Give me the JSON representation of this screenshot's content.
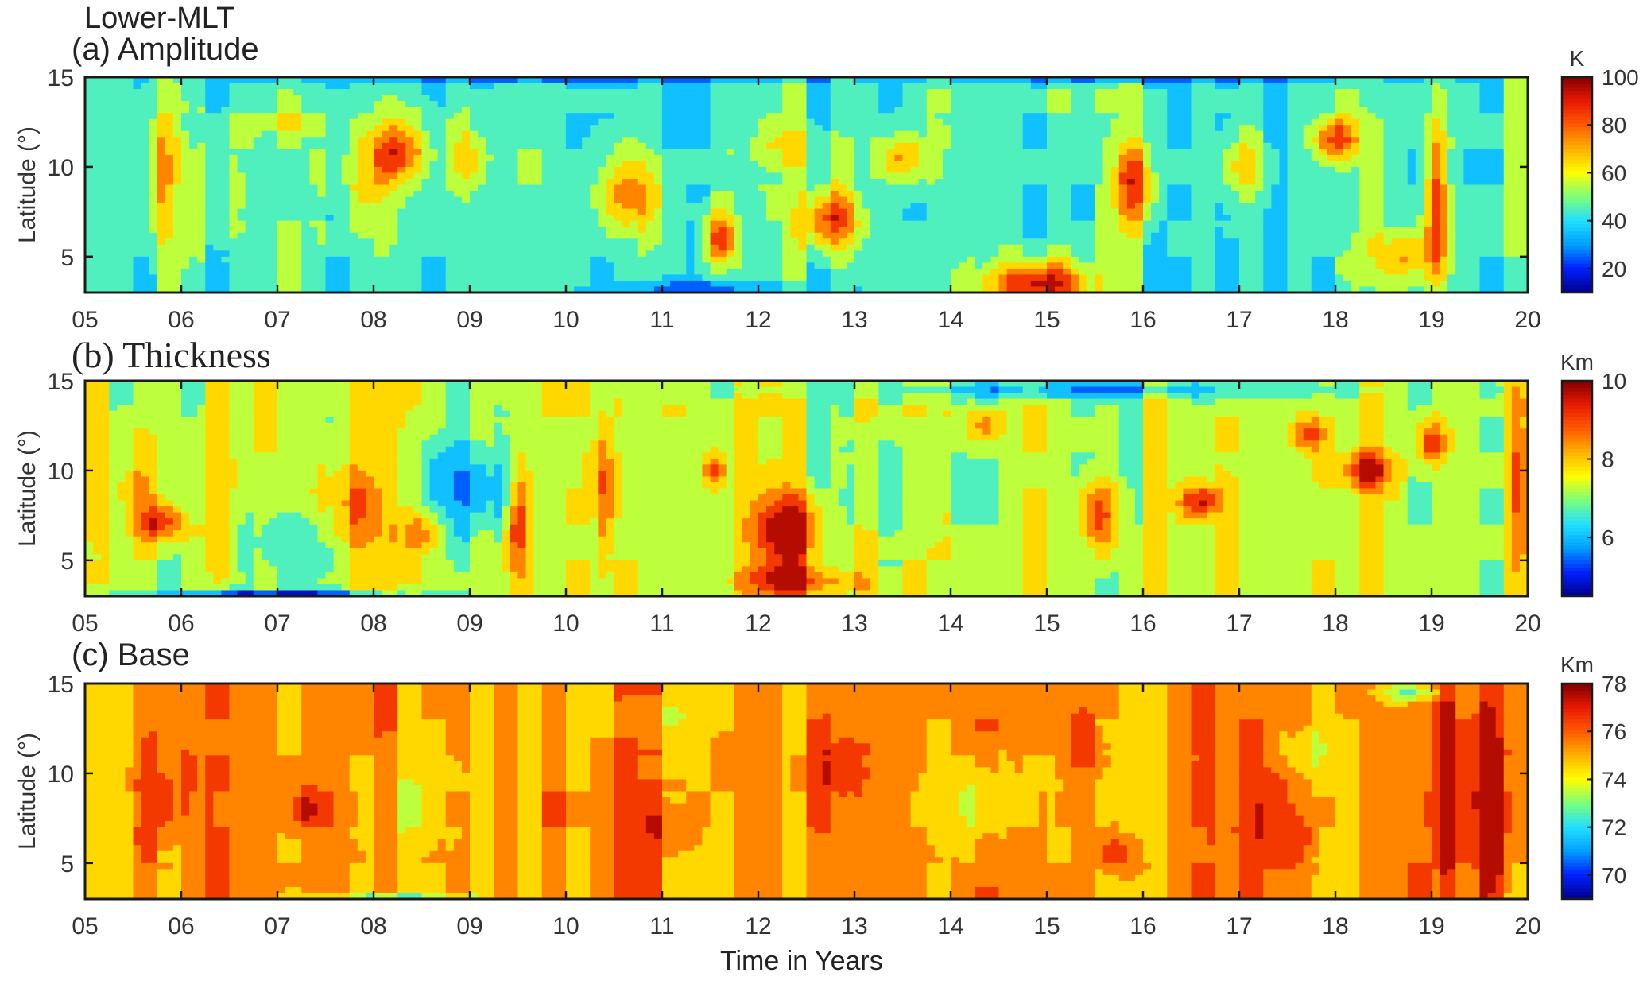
{
  "figure": {
    "title": "Lower-MLT",
    "xlabel": "Time in Years"
  },
  "colormap": [
    "#00008f",
    "#0020ff",
    "#00a0ff",
    "#22e0ff",
    "#7cff7a",
    "#ffff00",
    "#ffb000",
    "#ff5a00",
    "#e81800",
    "#800000"
  ],
  "chart_data": [
    {
      "type": "heatmap",
      "id": "amplitude",
      "title": "(a) Amplitude",
      "ylabel": "Latitude (°)",
      "colorbar_unit": "K",
      "clim": [
        10,
        100
      ],
      "colorbar_ticks": [
        20,
        40,
        60,
        80,
        100
      ],
      "xlim": [
        5,
        20
      ],
      "ylim": [
        3,
        15
      ],
      "x_ticks": [
        "05",
        "06",
        "07",
        "08",
        "09",
        "10",
        "11",
        "12",
        "13",
        "14",
        "15",
        "16",
        "17",
        "18",
        "19",
        "20"
      ],
      "y_ticks": [
        5,
        10,
        15
      ],
      "background_level": 44,
      "features": [
        {
          "x": 5.8,
          "y": 9.5,
          "wx": 0.18,
          "wy": 8.0,
          "v": 26
        },
        {
          "x": 6.45,
          "y": 9.0,
          "wx": 0.35,
          "wy": 7.0,
          "v": 10
        },
        {
          "x": 8.25,
          "y": 11.0,
          "wx": 0.3,
          "wy": 3.5,
          "v": 38
        },
        {
          "x": 7.9,
          "y": 9.0,
          "wx": 0.35,
          "wy": 6.0,
          "v": 18
        },
        {
          "x": 9.0,
          "y": 10.5,
          "wx": 0.2,
          "wy": 3.5,
          "v": 22
        },
        {
          "x": 10.65,
          "y": 8.5,
          "wx": 0.35,
          "wy": 5.0,
          "v": 34
        },
        {
          "x": 11.6,
          "y": 6.0,
          "wx": 0.18,
          "wy": 3.0,
          "v": 40
        },
        {
          "x": 12.75,
          "y": 7.0,
          "wx": 0.3,
          "wy": 3.5,
          "v": 44
        },
        {
          "x": 13.5,
          "y": 10.5,
          "wx": 0.3,
          "wy": 3.0,
          "v": 30
        },
        {
          "x": 14.9,
          "y": 3.5,
          "wx": 0.55,
          "wy": 2.5,
          "v": 52
        },
        {
          "x": 15.9,
          "y": 9.0,
          "wx": 0.2,
          "wy": 5.0,
          "v": 38
        },
        {
          "x": 17.05,
          "y": 10.0,
          "wx": 0.2,
          "wy": 4.0,
          "v": 24
        },
        {
          "x": 18.0,
          "y": 11.5,
          "wx": 0.25,
          "wy": 2.5,
          "v": 40
        },
        {
          "x": 19.05,
          "y": 8.0,
          "wx": 0.12,
          "wy": 9.0,
          "v": 42
        },
        {
          "x": 18.7,
          "y": 5.0,
          "wx": 0.4,
          "wy": 3.0,
          "v": 24
        },
        {
          "x": 9.5,
          "y": 14.8,
          "wx": 2.5,
          "wy": 0.5,
          "v": -16
        },
        {
          "x": 11.5,
          "y": 3.3,
          "wx": 1.0,
          "wy": 0.6,
          "v": -20
        },
        {
          "x": 16.0,
          "y": 14.8,
          "wx": 2.5,
          "wy": 0.4,
          "v": -14
        },
        {
          "x": 7.0,
          "y": 12.5,
          "wx": 0.5,
          "wy": 2.0,
          "v": 10
        },
        {
          "x": 12.3,
          "y": 11.0,
          "wx": 0.4,
          "wy": 2.5,
          "v": 16
        }
      ]
    },
    {
      "type": "heatmap",
      "id": "thickness",
      "title": "(b) Thickness",
      "ylabel": "Latitude (°)",
      "colorbar_unit": "Km",
      "clim": [
        4.5,
        10
      ],
      "colorbar_ticks": [
        6,
        8,
        10
      ],
      "xlim": [
        5,
        20
      ],
      "ylim": [
        3,
        15
      ],
      "x_ticks": [
        "05",
        "06",
        "07",
        "08",
        "09",
        "10",
        "11",
        "12",
        "13",
        "14",
        "15",
        "16",
        "17",
        "18",
        "19",
        "20"
      ],
      "y_ticks": [
        5,
        10,
        15
      ],
      "background_level": 7.3,
      "features": [
        {
          "x": 5.8,
          "y": 7.0,
          "wx": 0.25,
          "wy": 2.0,
          "v": 2.0
        },
        {
          "x": 5.5,
          "y": 9.0,
          "wx": 0.35,
          "wy": 5.0,
          "v": 0.8
        },
        {
          "x": 6.4,
          "y": 8.0,
          "wx": 0.2,
          "wy": 8.0,
          "v": 0.9
        },
        {
          "x": 7.75,
          "y": 8.0,
          "wx": 0.3,
          "wy": 5.0,
          "v": 1.4
        },
        {
          "x": 8.5,
          "y": 6.5,
          "wx": 0.25,
          "wy": 2.5,
          "v": 1.6
        },
        {
          "x": 9.0,
          "y": 9.0,
          "wx": 0.5,
          "wy": 6.0,
          "v": -1.6
        },
        {
          "x": 7.2,
          "y": 6.0,
          "wx": 0.5,
          "wy": 4.0,
          "v": -1.0
        },
        {
          "x": 9.5,
          "y": 7.0,
          "wx": 0.12,
          "wy": 6.0,
          "v": 2.2
        },
        {
          "x": 10.4,
          "y": 9.0,
          "wx": 0.1,
          "wy": 7.0,
          "v": 1.8
        },
        {
          "x": 11.55,
          "y": 10.0,
          "wx": 0.12,
          "wy": 2.0,
          "v": 1.8
        },
        {
          "x": 12.3,
          "y": 6.5,
          "wx": 0.35,
          "wy": 4.5,
          "v": 2.5
        },
        {
          "x": 12.4,
          "y": 3.8,
          "wx": 0.6,
          "wy": 1.5,
          "v": 1.8
        },
        {
          "x": 13.3,
          "y": 9.0,
          "wx": 0.6,
          "wy": 6.0,
          "v": -0.6
        },
        {
          "x": 14.35,
          "y": 12.5,
          "wx": 0.2,
          "wy": 2.0,
          "v": 1.6
        },
        {
          "x": 15.55,
          "y": 7.5,
          "wx": 0.2,
          "wy": 4.0,
          "v": 2.0
        },
        {
          "x": 16.6,
          "y": 8.3,
          "wx": 0.22,
          "wy": 2.0,
          "v": 2.4
        },
        {
          "x": 17.7,
          "y": 12.0,
          "wx": 0.18,
          "wy": 2.0,
          "v": 2.0
        },
        {
          "x": 18.35,
          "y": 10.0,
          "wx": 0.22,
          "wy": 2.0,
          "v": 2.4
        },
        {
          "x": 19.0,
          "y": 11.5,
          "wx": 0.15,
          "wy": 2.5,
          "v": 2.0
        },
        {
          "x": 19.9,
          "y": 9.0,
          "wx": 0.1,
          "wy": 12.0,
          "v": 1.5
        },
        {
          "x": 15.5,
          "y": 14.5,
          "wx": 2.5,
          "wy": 1.0,
          "v": -1.4
        },
        {
          "x": 7.0,
          "y": 3.2,
          "wx": 1.2,
          "wy": 0.4,
          "v": -2.2
        }
      ]
    },
    {
      "type": "heatmap",
      "id": "base",
      "title": "(c) Base",
      "ylabel": "Latitude (°)",
      "colorbar_unit": "Km",
      "clim": [
        69,
        78
      ],
      "colorbar_ticks": [
        70,
        72,
        74,
        76,
        78
      ],
      "xlim": [
        5,
        20
      ],
      "ylim": [
        3,
        15
      ],
      "x_ticks": [
        "05",
        "06",
        "07",
        "08",
        "09",
        "10",
        "11",
        "12",
        "13",
        "14",
        "15",
        "16",
        "17",
        "18",
        "19",
        "20"
      ],
      "y_ticks": [
        5,
        10,
        15
      ],
      "background_level": 75.4,
      "features": [
        {
          "x": 19.5,
          "y": 9.0,
          "wx": 0.35,
          "wy": 12.0,
          "v": 2.2
        },
        {
          "x": 19.15,
          "y": 9.0,
          "wx": 0.1,
          "wy": 12.0,
          "v": 2.6
        },
        {
          "x": 12.9,
          "y": 10.0,
          "wx": 0.4,
          "wy": 4.0,
          "v": 1.6
        },
        {
          "x": 15.75,
          "y": 5.5,
          "wx": 0.25,
          "wy": 2.0,
          "v": 1.8
        },
        {
          "x": 15.4,
          "y": 11.5,
          "wx": 0.2,
          "wy": 3.0,
          "v": 1.4
        },
        {
          "x": 5.8,
          "y": 9.0,
          "wx": 0.25,
          "wy": 6.0,
          "v": 1.6
        },
        {
          "x": 7.3,
          "y": 8.0,
          "wx": 0.2,
          "wy": 2.0,
          "v": 1.6
        },
        {
          "x": 11.0,
          "y": 7.0,
          "wx": 0.3,
          "wy": 3.0,
          "v": 1.4
        },
        {
          "x": 17.3,
          "y": 7.5,
          "wx": 0.4,
          "wy": 6.0,
          "v": 1.4
        },
        {
          "x": 14.3,
          "y": 8.5,
          "wx": 0.5,
          "wy": 6.0,
          "v": -1.6
        },
        {
          "x": 17.7,
          "y": 11.0,
          "wx": 0.3,
          "wy": 4.0,
          "v": -1.4
        },
        {
          "x": 8.3,
          "y": 8.0,
          "wx": 0.5,
          "wy": 6.0,
          "v": -0.8
        },
        {
          "x": 10.8,
          "y": 13.0,
          "wx": 0.7,
          "wy": 2.0,
          "v": -0.8
        },
        {
          "x": 8.2,
          "y": 3.2,
          "wx": 0.8,
          "wy": 0.4,
          "v": -2.2
        },
        {
          "x": 18.8,
          "y": 14.5,
          "wx": 0.3,
          "wy": 1.0,
          "v": -3.0
        }
      ]
    }
  ]
}
